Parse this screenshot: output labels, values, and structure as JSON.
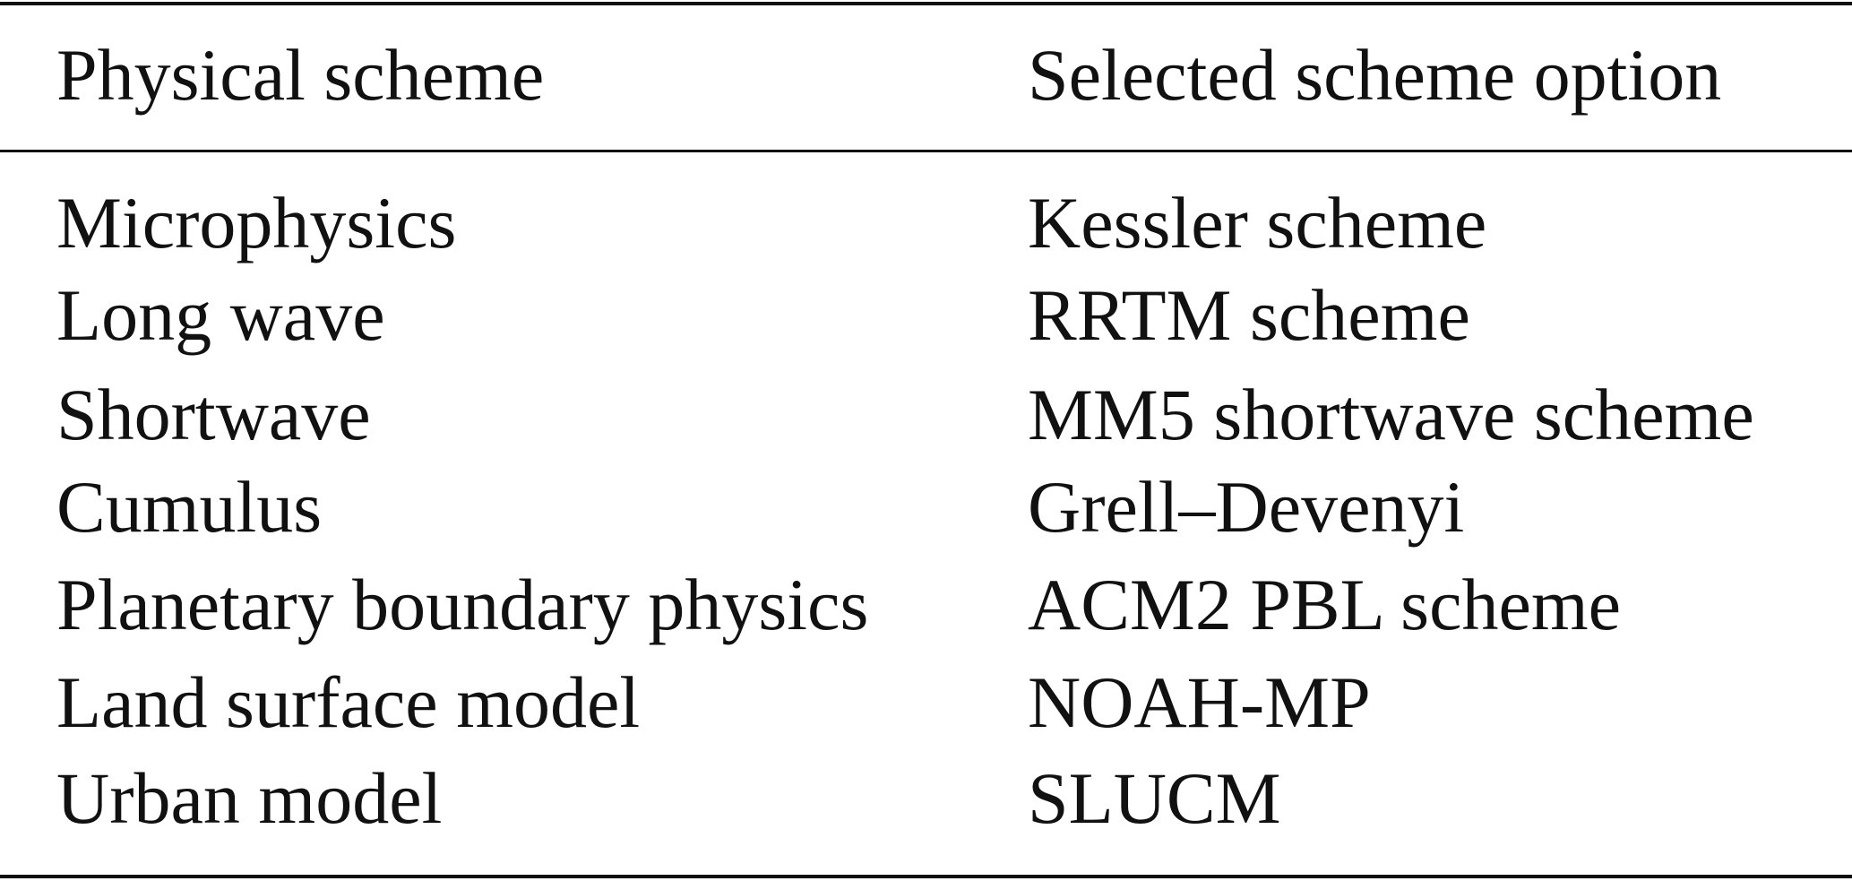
{
  "table": {
    "headers": [
      "Physical scheme",
      "Selected scheme option"
    ],
    "rows": [
      [
        "Microphysics",
        "Kessler scheme"
      ],
      [
        "Long wave",
        "RRTM scheme"
      ],
      [
        "Shortwave",
        "MM5 shortwave scheme"
      ],
      [
        "Cumulus",
        "Grell–Devenyi"
      ],
      [
        "Planetary boundary physics",
        "ACM2 PBL scheme"
      ],
      [
        "Land surface model",
        "NOAH-MP"
      ],
      [
        "Urban model",
        "SLUCM"
      ]
    ]
  }
}
